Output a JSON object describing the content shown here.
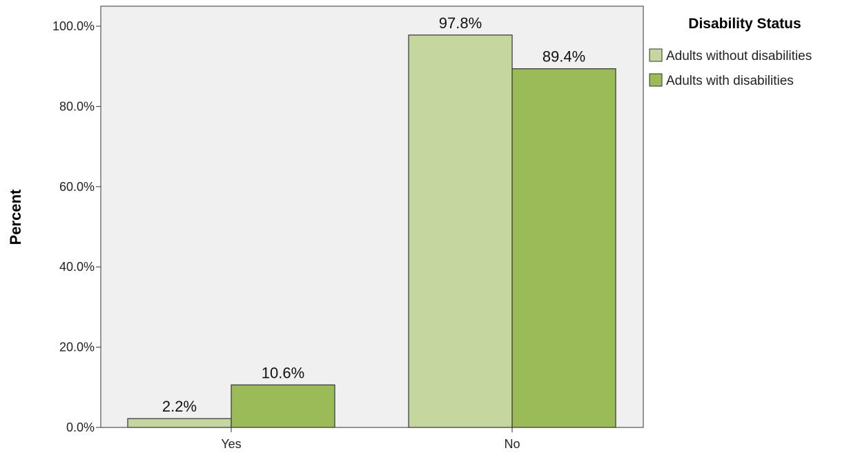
{
  "chart_data": {
    "type": "bar",
    "ylabel": "Percent",
    "categories": [
      "Yes",
      "No"
    ],
    "ylim": [
      0,
      100
    ],
    "ytick_values": [
      0,
      20,
      40,
      60,
      80,
      100
    ],
    "ytick_labels": [
      "0.0%",
      "20.0%",
      "40.0%",
      "60.0%",
      "80.0%",
      "100.0%"
    ],
    "series": [
      {
        "name": "Adults without disabilities",
        "values": [
          2.2,
          97.8
        ],
        "data_labels": [
          "2.2%",
          "97.8%"
        ],
        "color": "#c5d79e"
      },
      {
        "name": "Adults with disabilities",
        "values": [
          10.6,
          89.4
        ],
        "data_labels": [
          "10.6%",
          "89.4%"
        ],
        "color": "#9bbb59"
      }
    ],
    "legend": {
      "title": "Disability Status",
      "placement": "top-right, outside plot"
    },
    "grid": false,
    "plot_background": "#f0f0f0"
  }
}
